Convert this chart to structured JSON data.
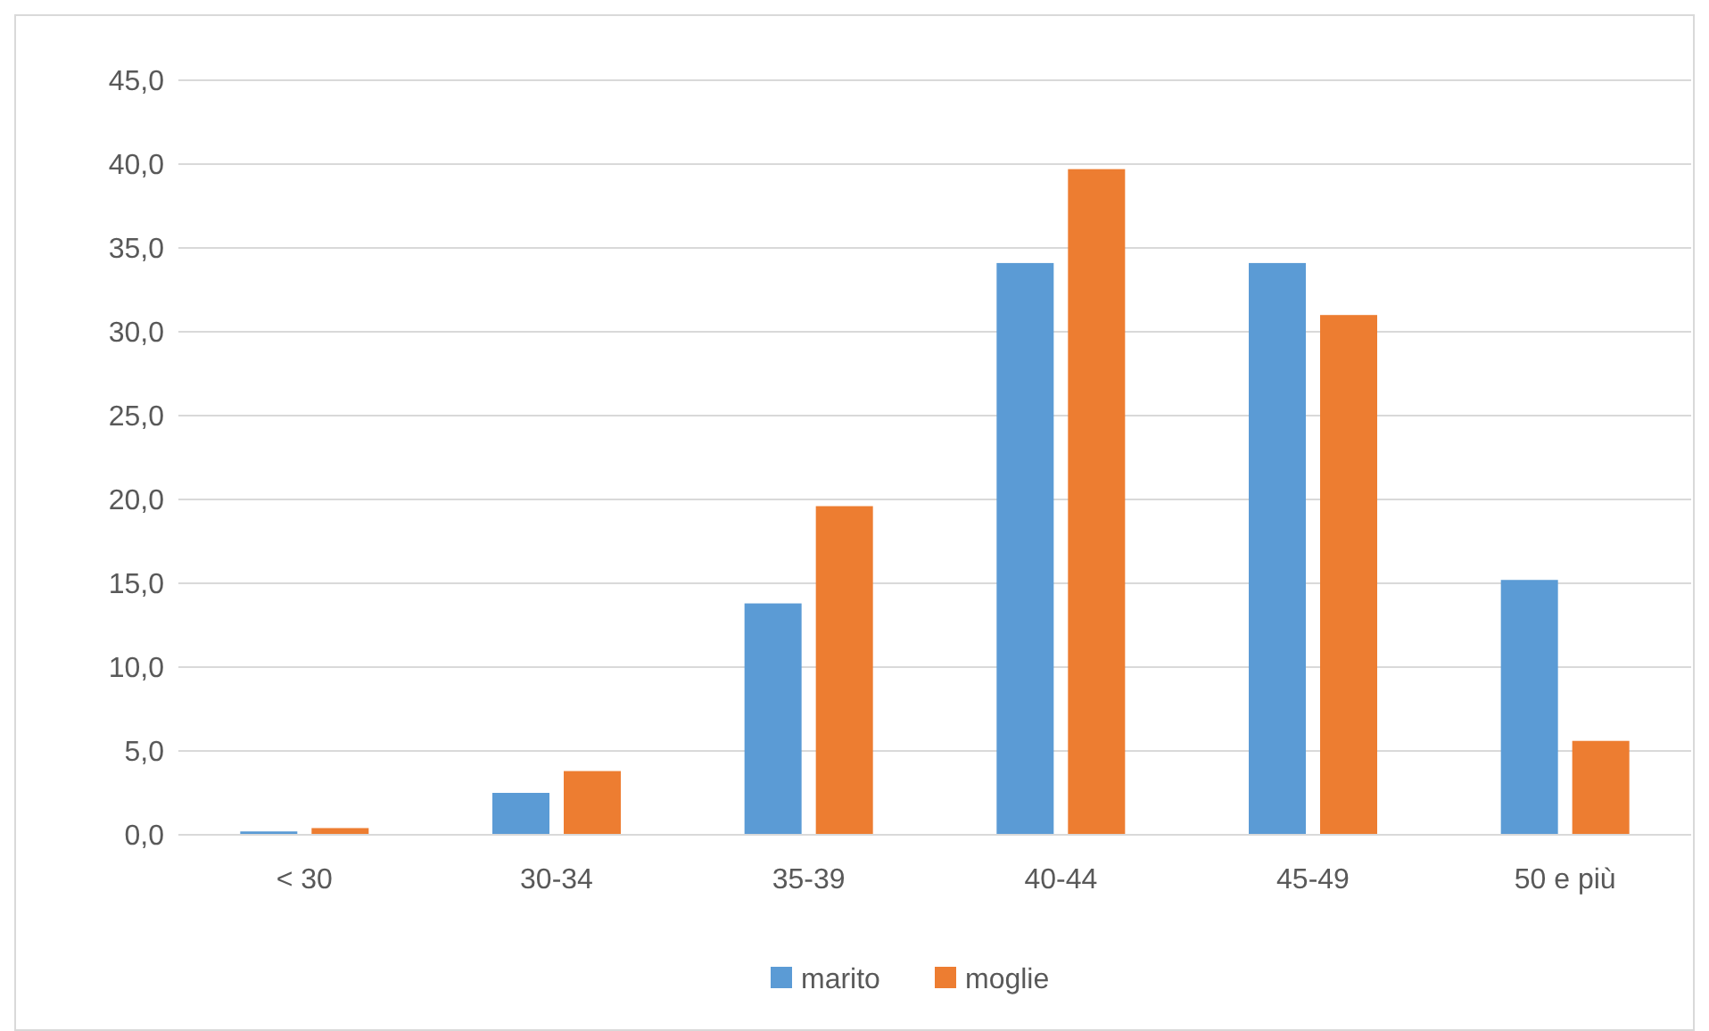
{
  "chart_data": {
    "type": "bar",
    "categories": [
      "< 30",
      "30-34",
      "35-39",
      "40-44",
      "45-49",
      "50 e più"
    ],
    "series": [
      {
        "name": "marito",
        "color": "#5b9bd5",
        "values": [
          0.2,
          2.5,
          13.8,
          34.1,
          34.1,
          15.2
        ]
      },
      {
        "name": "moglie",
        "color": "#ed7d31",
        "values": [
          0.4,
          3.8,
          19.6,
          39.7,
          31.0,
          5.6
        ]
      }
    ],
    "ylim": [
      0,
      45
    ],
    "yticks": [
      {
        "value": 0,
        "label": "0,0"
      },
      {
        "value": 5,
        "label": "5,0"
      },
      {
        "value": 10,
        "label": "10,0"
      },
      {
        "value": 15,
        "label": "15,0"
      },
      {
        "value": 20,
        "label": "20,0"
      },
      {
        "value": 25,
        "label": "25,0"
      },
      {
        "value": 30,
        "label": "30,0"
      },
      {
        "value": 35,
        "label": "35,0"
      },
      {
        "value": 40,
        "label": "40,0"
      },
      {
        "value": 45,
        "label": "45,0"
      }
    ],
    "grid": "y",
    "legend": "bottom"
  }
}
